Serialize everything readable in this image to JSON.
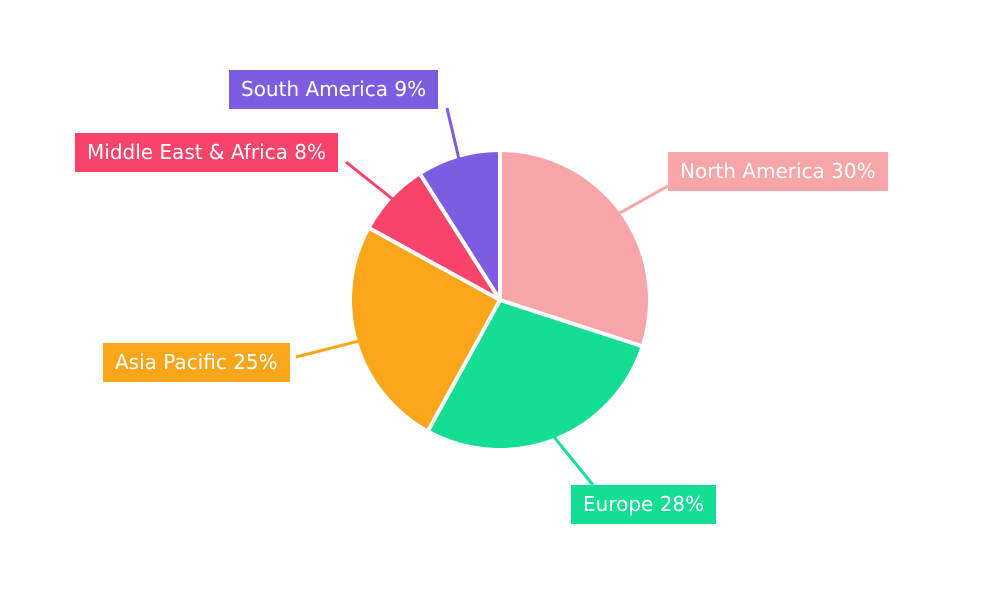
{
  "chart_data": {
    "type": "pie",
    "legend": "none",
    "start_angle_deg": 0,
    "direction": "clockwise",
    "total": 100,
    "categories": [
      "North America",
      "Europe",
      "Asia Pacific",
      "Middle East & Africa",
      "South America"
    ],
    "values": [
      30,
      28,
      25,
      8,
      9
    ],
    "slices": [
      {
        "name": "North America",
        "value": 30,
        "display": "North America 30%",
        "color": "#F8A5A8"
      },
      {
        "name": "Europe",
        "value": 28,
        "display": "Europe 28%",
        "color": "#13DE94"
      },
      {
        "name": "Asia Pacific",
        "value": 25,
        "display": "Asia Pacific 25%",
        "color": "#F9A61B"
      },
      {
        "name": "Middle East & Africa",
        "value": 8,
        "display": "Middle East & Africa 8%",
        "color": "#F8436B"
      },
      {
        "name": "South America",
        "value": 9,
        "display": "South America 9%",
        "color": "#7D5CE2"
      }
    ],
    "colors": {
      "background": "#ffffff",
      "slice_gap": "#ffffff",
      "label_text": "#ffffff"
    }
  }
}
